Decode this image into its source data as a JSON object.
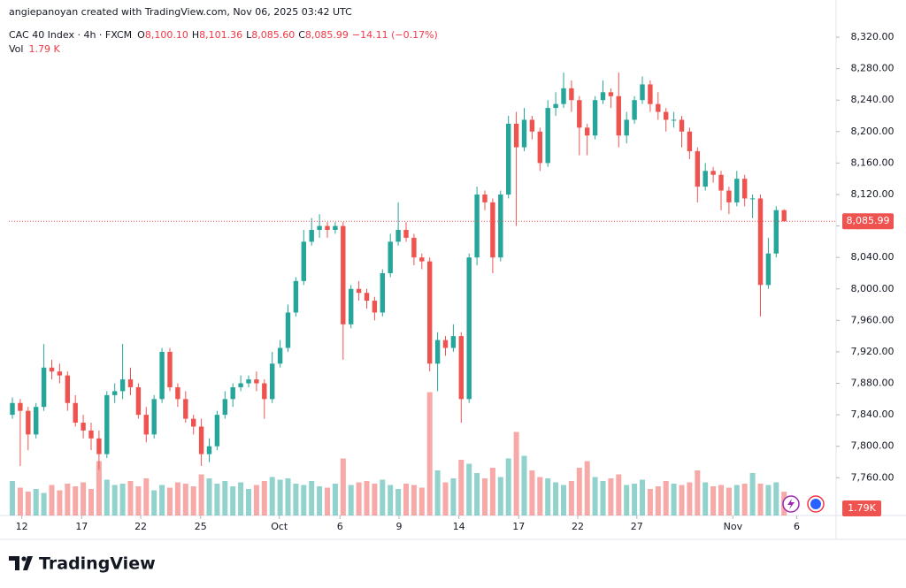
{
  "chart_data": {
    "type": "candlestick",
    "attribution": "angiepanoyan created with TradingView.com, Nov 06, 2025 03:42 UTC",
    "symbol": "CAC 40 Index · 4h · FXCM",
    "legend": {
      "o_key": "O",
      "o": "8,100.10",
      "h_key": "H",
      "h": "8,101.36",
      "l_key": "L",
      "l": "8,085.60",
      "c_key": "C",
      "c": "8,085.99",
      "change": "−14.11 (−0.17%)"
    },
    "volume_key": "Vol",
    "volume_text": "1.79 K",
    "last_label": "8,085.99",
    "volume_axis_label": "1.79K",
    "logo_text": "TradingView",
    "up_color": "#26a69a",
    "down_color": "#ef5350",
    "ylim": [
      7712,
      8356
    ],
    "yticks": [
      {
        "value": 7760,
        "label": "7,760.00"
      },
      {
        "value": 7800,
        "label": "7,800.00"
      },
      {
        "value": 7840,
        "label": "7,840.00"
      },
      {
        "value": 7880,
        "label": "7,880.00"
      },
      {
        "value": 7920,
        "label": "7,920.00"
      },
      {
        "value": 7960,
        "label": "7,960.00"
      },
      {
        "value": 8000,
        "label": "8,000.00"
      },
      {
        "value": 8040,
        "label": "8,040.00"
      },
      {
        "value": 8080,
        "label": "8,080.00"
      },
      {
        "value": 8120,
        "label": "8,120.00"
      },
      {
        "value": 8160,
        "label": "8,160.00"
      },
      {
        "value": 8200,
        "label": "8,200.00"
      },
      {
        "value": 8240,
        "label": "8,240.00"
      },
      {
        "value": 8280,
        "label": "8,280.00"
      },
      {
        "value": 8320,
        "label": "8,320.00"
      }
    ],
    "xticks": [
      {
        "value": 1.2,
        "label": "12"
      },
      {
        "value": 8.8,
        "label": "17"
      },
      {
        "value": 16.3,
        "label": "22"
      },
      {
        "value": 23.9,
        "label": "25"
      },
      {
        "value": 33.9,
        "label": "Oct"
      },
      {
        "value": 41.6,
        "label": "6"
      },
      {
        "value": 49.1,
        "label": "9"
      },
      {
        "value": 56.7,
        "label": "14"
      },
      {
        "value": 64.3,
        "label": "17"
      },
      {
        "value": 71.8,
        "label": "22"
      },
      {
        "value": 79.3,
        "label": "27"
      },
      {
        "value": 91.5,
        "label": "Nov"
      },
      {
        "value": 99.6,
        "label": "6"
      }
    ],
    "vol_ylim": [
      0,
      12
    ],
    "open": [
      7840,
      7855,
      7845,
      7815,
      7850,
      7900,
      7895,
      7890,
      7855,
      7830,
      7820,
      7810,
      7790,
      7865,
      7870,
      7885,
      7875,
      7840,
      7815,
      7860,
      7920,
      7875,
      7860,
      7835,
      7825,
      7790,
      7800,
      7840,
      7860,
      7875,
      7880,
      7885,
      7880,
      7860,
      7905,
      7925,
      7970,
      8010,
      8060,
      8075,
      8080,
      8075,
      8080,
      7955,
      8000,
      7995,
      7985,
      7970,
      8020,
      8060,
      8075,
      8065,
      8040,
      8035,
      7905,
      7935,
      7925,
      7940,
      7860,
      8040,
      8120,
      8110,
      8040,
      8120,
      8210,
      8180,
      8215,
      8200,
      8160,
      8230,
      8235,
      8255,
      8240,
      8205,
      8195,
      8240,
      8250,
      8245,
      8195,
      8215,
      8240,
      8260,
      8235,
      8225,
      8215,
      8215,
      8200,
      8175,
      8130,
      8150,
      8145,
      8125,
      8110,
      8140,
      8115,
      8115,
      8005,
      8045,
      8100.1
    ],
    "high": [
      7862,
      7860,
      7850,
      7855,
      7930,
      7910,
      7905,
      7895,
      7865,
      7840,
      7830,
      7820,
      7870,
      7880,
      7930,
      7900,
      7880,
      7850,
      7865,
      7925,
      7925,
      7880,
      7870,
      7840,
      7835,
      7810,
      7845,
      7870,
      7880,
      7890,
      7890,
      7895,
      7885,
      7920,
      7935,
      7980,
      8015,
      8075,
      8090,
      8095,
      8085,
      8085,
      8085,
      8005,
      8010,
      8000,
      7990,
      8025,
      8070,
      8110,
      8085,
      8070,
      8045,
      8040,
      7945,
      7940,
      7955,
      7945,
      8045,
      8130,
      8125,
      8115,
      8125,
      8220,
      8225,
      8230,
      8220,
      8205,
      8240,
      8250,
      8275,
      8265,
      8245,
      8210,
      8245,
      8265,
      8255,
      8275,
      8225,
      8245,
      8270,
      8265,
      8250,
      8230,
      8225,
      8220,
      8205,
      8180,
      8160,
      8155,
      8150,
      8130,
      8150,
      8145,
      8120,
      8120,
      8065,
      8105,
      8101.36
    ],
    "low": [
      7835,
      7775,
      7795,
      7810,
      7845,
      7885,
      7880,
      7845,
      7825,
      7810,
      7795,
      7770,
      7785,
      7855,
      7860,
      7865,
      7835,
      7805,
      7810,
      7855,
      7870,
      7850,
      7830,
      7815,
      7775,
      7780,
      7795,
      7835,
      7850,
      7870,
      7875,
      7870,
      7835,
      7855,
      7900,
      7920,
      7965,
      8005,
      8055,
      8065,
      8065,
      8070,
      7910,
      7950,
      7985,
      7975,
      7960,
      7965,
      8015,
      8055,
      8060,
      8030,
      8025,
      7895,
      7870,
      7915,
      7920,
      7830,
      7855,
      8030,
      8100,
      8020,
      8035,
      8115,
      8080,
      8175,
      8190,
      8150,
      8155,
      8220,
      8230,
      8225,
      8170,
      8170,
      8190,
      8235,
      8230,
      8180,
      8185,
      8210,
      8235,
      8225,
      8215,
      8200,
      8205,
      8180,
      8165,
      8110,
      8125,
      8135,
      8100,
      8095,
      8105,
      8105,
      8090,
      7965,
      8000,
      8040,
      8085.6
    ],
    "close": [
      7855,
      7845,
      7815,
      7850,
      7900,
      7895,
      7890,
      7855,
      7830,
      7820,
      7810,
      7790,
      7865,
      7870,
      7885,
      7875,
      7840,
      7815,
      7860,
      7920,
      7875,
      7860,
      7835,
      7825,
      7790,
      7800,
      7840,
      7860,
      7875,
      7880,
      7885,
      7880,
      7860,
      7905,
      7925,
      7970,
      8010,
      8060,
      8075,
      8080,
      8075,
      8080,
      7955,
      8000,
      7995,
      7985,
      7970,
      8020,
      8060,
      8075,
      8065,
      8040,
      8035,
      7905,
      7935,
      7925,
      7940,
      7860,
      8040,
      8120,
      8110,
      8040,
      8120,
      8210,
      8180,
      8215,
      8200,
      8160,
      8230,
      8235,
      8255,
      8240,
      8205,
      8195,
      8240,
      8250,
      8245,
      8195,
      8215,
      8240,
      8260,
      8235,
      8225,
      8215,
      8215,
      8200,
      8175,
      8130,
      8150,
      8145,
      8125,
      8110,
      8140,
      8115,
      8115,
      8005,
      8045,
      8100.1,
      8085.99
    ],
    "volume": [
      2.6,
      2.1,
      1.8,
      2.0,
      1.7,
      2.3,
      1.9,
      2.4,
      2.2,
      2.5,
      2.0,
      4.1,
      2.7,
      2.3,
      2.4,
      2.6,
      2.2,
      2.8,
      1.9,
      2.3,
      2.1,
      2.5,
      2.4,
      2.2,
      3.1,
      2.8,
      2.4,
      2.6,
      2.2,
      2.5,
      2.0,
      2.3,
      2.6,
      2.9,
      2.7,
      2.8,
      2.4,
      2.3,
      2.6,
      2.2,
      2.1,
      2.4,
      4.3,
      2.3,
      2.5,
      2.6,
      2.4,
      2.7,
      2.3,
      2.0,
      2.4,
      2.3,
      2.1,
      9.3,
      3.4,
      2.5,
      2.8,
      4.2,
      3.9,
      3.2,
      2.8,
      3.6,
      2.9,
      4.3,
      6.3,
      4.5,
      3.4,
      2.9,
      2.8,
      2.5,
      2.3,
      2.6,
      3.6,
      4.1,
      2.9,
      2.6,
      2.8,
      3.1,
      2.3,
      2.4,
      2.7,
      2.0,
      2.2,
      2.6,
      2.4,
      2.3,
      2.5,
      3.4,
      2.5,
      2.2,
      2.3,
      2.1,
      2.3,
      2.4,
      3.2,
      2.4,
      2.3,
      2.5,
      1.79
    ]
  }
}
